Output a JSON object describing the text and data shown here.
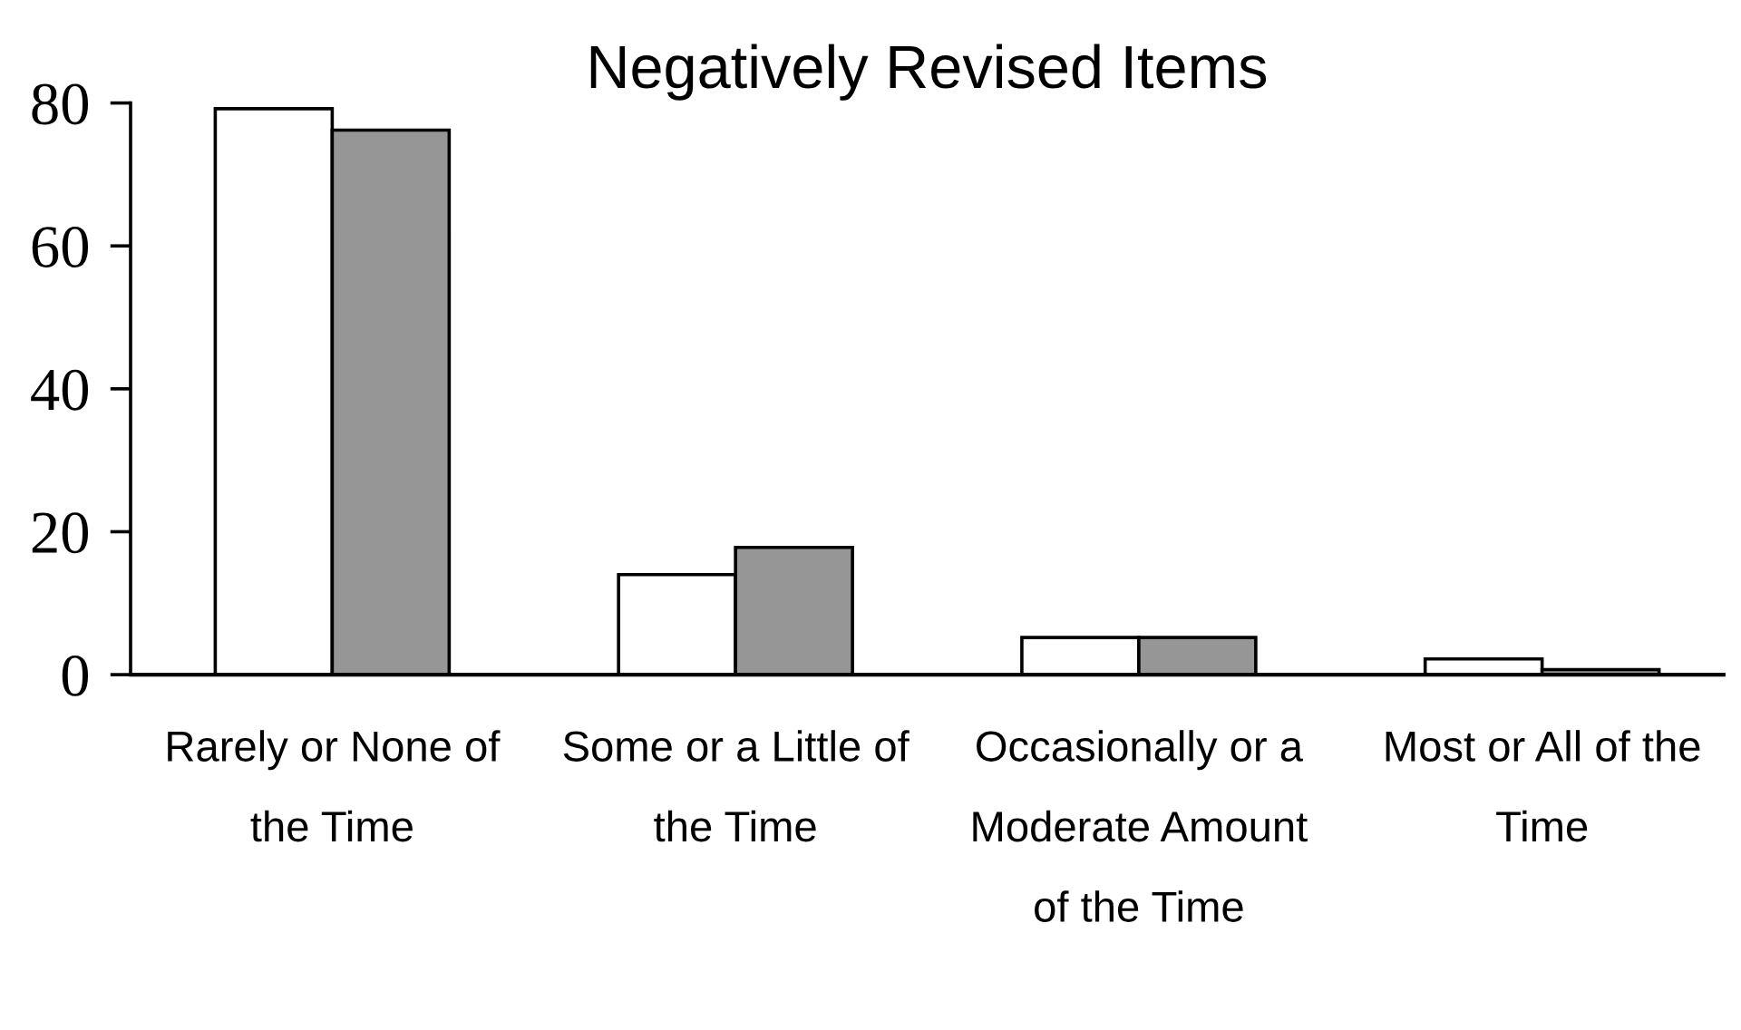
{
  "chart_data": {
    "type": "bar",
    "title": "Negatively Revised Items",
    "categories": [
      "Rarely or None of\nthe Time",
      "Some or a Little of\nthe Time",
      "Occasionally or a\nModerate Amount\nof the Time",
      "Most or All of the\nTime"
    ],
    "series": [
      {
        "color": "#ffffff",
        "values": [
          79.2,
          14.0,
          5.2,
          2.2
        ]
      },
      {
        "color": "#969696",
        "values": [
          76.2,
          17.8,
          5.2,
          0.7
        ]
      }
    ],
    "ylim": [
      0,
      80
    ],
    "yticks": [
      0,
      20,
      40,
      60,
      80
    ],
    "grid": false
  }
}
